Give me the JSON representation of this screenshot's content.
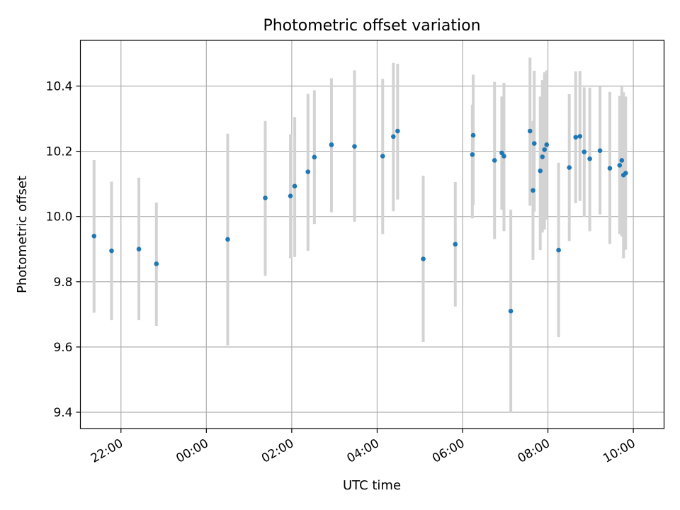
{
  "chart_data": {
    "type": "scatter",
    "title": "Photometric offset variation",
    "xlabel": "UTC time",
    "ylabel": "Photometric offset",
    "grid": true,
    "x_range_hours": [
      -2.95,
      10.72
    ],
    "ylim": [
      9.35,
      10.54
    ],
    "x_ticks": [
      {
        "hour": -2,
        "label": "22:00"
      },
      {
        "hour": 0,
        "label": "00:00"
      },
      {
        "hour": 2,
        "label": "02:00"
      },
      {
        "hour": 4,
        "label": "04:00"
      },
      {
        "hour": 6,
        "label": "06:00"
      },
      {
        "hour": 8,
        "label": "08:00"
      },
      {
        "hour": 10,
        "label": "10:00"
      }
    ],
    "y_ticks": [
      {
        "value": 9.4,
        "label": "9.4"
      },
      {
        "value": 9.6,
        "label": "9.6"
      },
      {
        "value": 9.8,
        "label": "9.8"
      },
      {
        "value": 10.0,
        "label": "10.0"
      },
      {
        "value": 10.2,
        "label": "10.2"
      },
      {
        "value": 10.4,
        "label": "10.4"
      }
    ],
    "marker_color": "#1f77b4",
    "errorbar_color": "#d3d3d3",
    "series": [
      {
        "x_hours": [
          -2.63,
          -2.22,
          -1.58,
          -1.17,
          0.5,
          1.38,
          1.97,
          2.07,
          2.38,
          2.53,
          2.93,
          3.47,
          4.13,
          4.38,
          4.48,
          5.08,
          5.83,
          6.23,
          6.25,
          6.75,
          6.92,
          6.97,
          7.13,
          7.58,
          7.65,
          7.68,
          7.82,
          7.87,
          7.92,
          7.97,
          8.25,
          8.5,
          8.65,
          8.75,
          8.85,
          8.98,
          9.22,
          9.45,
          9.68,
          9.73,
          9.77,
          9.82
        ],
        "y": [
          9.94,
          9.895,
          9.9,
          9.855,
          9.93,
          10.057,
          10.063,
          10.093,
          10.137,
          10.182,
          10.22,
          10.215,
          10.185,
          10.245,
          10.262,
          9.87,
          9.915,
          10.19,
          10.249,
          10.172,
          10.195,
          10.185,
          9.71,
          10.262,
          10.08,
          10.224,
          10.14,
          10.183,
          10.205,
          10.22,
          9.897,
          10.15,
          10.243,
          10.246,
          10.198,
          10.177,
          10.202,
          10.148,
          10.157,
          10.172,
          10.127,
          10.133
        ],
        "y_low": [
          9.705,
          9.682,
          9.682,
          9.665,
          9.605,
          9.818,
          9.872,
          9.876,
          9.895,
          9.977,
          10.013,
          9.984,
          9.946,
          10.016,
          10.052,
          9.615,
          9.724,
          9.994,
          10.035,
          9.931,
          10.021,
          9.955,
          9.398,
          10.033,
          9.867,
          10.015,
          9.897,
          9.951,
          9.96,
          9.99,
          9.63,
          9.925,
          10.041,
          10.048,
          9.998,
          9.955,
          10.006,
          9.916,
          9.946,
          9.939,
          9.872,
          9.898
        ],
        "y_high": [
          10.173,
          10.107,
          10.119,
          10.043,
          10.254,
          10.293,
          10.252,
          10.305,
          10.376,
          10.387,
          10.424,
          10.448,
          10.422,
          10.471,
          10.468,
          10.125,
          10.106,
          10.343,
          10.435,
          10.413,
          10.368,
          10.41,
          10.021,
          10.487,
          10.293,
          10.447,
          10.368,
          10.418,
          10.442,
          10.448,
          10.165,
          10.375,
          10.445,
          10.446,
          10.396,
          10.395,
          10.4,
          10.382,
          10.37,
          10.402,
          10.381,
          10.368
        ]
      }
    ]
  }
}
